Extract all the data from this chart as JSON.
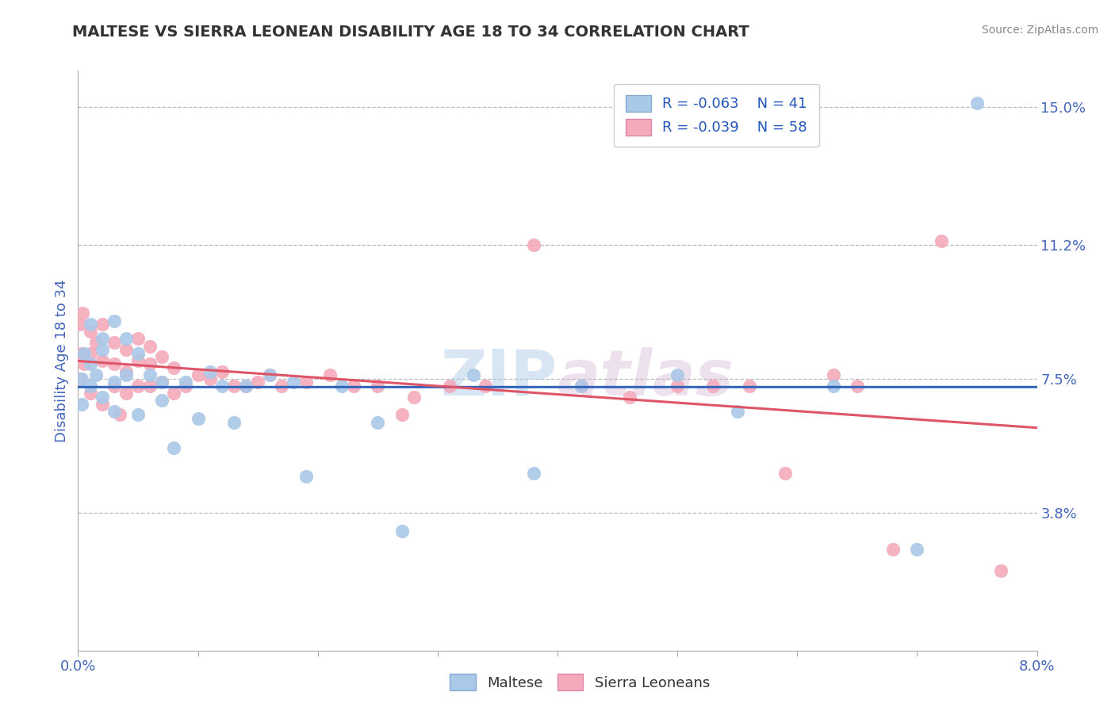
{
  "title": "MALTESE VS SIERRA LEONEAN DISABILITY AGE 18 TO 34 CORRELATION CHART",
  "source": "Source: ZipAtlas.com",
  "ylabel": "Disability Age 18 to 34",
  "xlim": [
    0.0,
    0.08
  ],
  "ylim": [
    0.0,
    0.16
  ],
  "xticks": [
    0.0,
    0.01,
    0.02,
    0.03,
    0.04,
    0.05,
    0.06,
    0.07,
    0.08
  ],
  "xticklabels": [
    "0.0%",
    "",
    "",
    "",
    "",
    "",
    "",
    "",
    "8.0%"
  ],
  "yticks_right": [
    0.038,
    0.075,
    0.112,
    0.15
  ],
  "ytick_right_labels": [
    "3.8%",
    "7.5%",
    "11.2%",
    "15.0%"
  ],
  "hlines": [
    0.038,
    0.075,
    0.112,
    0.15
  ],
  "blue_R": -0.063,
  "blue_N": 41,
  "pink_R": -0.039,
  "pink_N": 58,
  "blue_color": "#aac8e8",
  "pink_color": "#f4aabb",
  "blue_line_color": "#3366bb",
  "pink_line_color": "#dd5566",
  "watermark": "ZIPAtlas",
  "legend_color": "#2255bb",
  "blue_scatter_x": [
    0.0003,
    0.0003,
    0.0005,
    0.001,
    0.001,
    0.001,
    0.0015,
    0.002,
    0.002,
    0.002,
    0.003,
    0.003,
    0.003,
    0.004,
    0.004,
    0.005,
    0.005,
    0.006,
    0.007,
    0.007,
    0.008,
    0.009,
    0.01,
    0.011,
    0.012,
    0.013,
    0.014,
    0.016,
    0.018,
    0.019,
    0.022,
    0.025,
    0.027,
    0.033,
    0.038,
    0.042,
    0.05,
    0.055,
    0.063,
    0.07,
    0.075
  ],
  "blue_scatter_y": [
    0.075,
    0.068,
    0.082,
    0.073,
    0.079,
    0.09,
    0.076,
    0.083,
    0.07,
    0.086,
    0.074,
    0.066,
    0.091,
    0.076,
    0.086,
    0.065,
    0.082,
    0.076,
    0.074,
    0.069,
    0.056,
    0.074,
    0.064,
    0.077,
    0.073,
    0.063,
    0.073,
    0.076,
    0.074,
    0.048,
    0.073,
    0.063,
    0.033,
    0.076,
    0.049,
    0.073,
    0.076,
    0.066,
    0.073,
    0.028,
    0.151
  ],
  "pink_scatter_x": [
    0.0002,
    0.0002,
    0.0003,
    0.0004,
    0.0005,
    0.001,
    0.001,
    0.001,
    0.0015,
    0.002,
    0.002,
    0.002,
    0.003,
    0.003,
    0.003,
    0.0035,
    0.004,
    0.004,
    0.004,
    0.005,
    0.005,
    0.005,
    0.006,
    0.006,
    0.006,
    0.007,
    0.007,
    0.008,
    0.008,
    0.009,
    0.01,
    0.011,
    0.012,
    0.013,
    0.014,
    0.015,
    0.016,
    0.017,
    0.019,
    0.021,
    0.023,
    0.025,
    0.027,
    0.028,
    0.031,
    0.034,
    0.038,
    0.042,
    0.046,
    0.05,
    0.053,
    0.056,
    0.059,
    0.063,
    0.065,
    0.068,
    0.072,
    0.077
  ],
  "pink_scatter_y": [
    0.09,
    0.075,
    0.082,
    0.093,
    0.079,
    0.088,
    0.082,
    0.071,
    0.085,
    0.09,
    0.08,
    0.068,
    0.085,
    0.079,
    0.073,
    0.065,
    0.083,
    0.077,
    0.071,
    0.086,
    0.08,
    0.073,
    0.084,
    0.079,
    0.073,
    0.081,
    0.074,
    0.078,
    0.071,
    0.073,
    0.076,
    0.075,
    0.077,
    0.073,
    0.073,
    0.074,
    0.076,
    0.073,
    0.074,
    0.076,
    0.073,
    0.073,
    0.065,
    0.07,
    0.073,
    0.073,
    0.112,
    0.073,
    0.07,
    0.073,
    0.073,
    0.073,
    0.049,
    0.076,
    0.073,
    0.028,
    0.113,
    0.022
  ],
  "background_color": "#ffffff",
  "title_color": "#333333",
  "title_fontsize": 14,
  "tick_label_color": "#4466bb",
  "axis_label_color": "#4466bb"
}
